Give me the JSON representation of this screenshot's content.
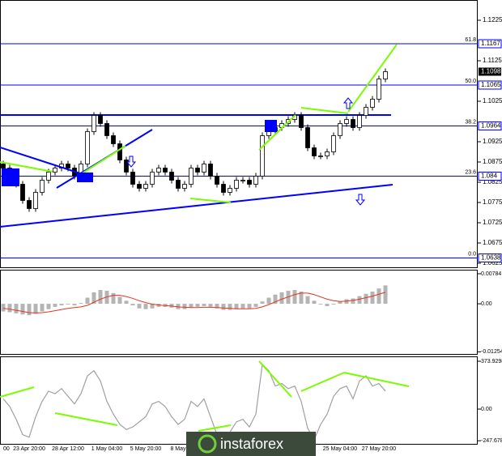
{
  "chart_data": {
    "type": "candlestick",
    "categories": [
      "00",
      null,
      null,
      null,
      "23 Apr 20:00",
      null,
      null,
      null,
      null,
      null,
      "28 Apr 12:00",
      null,
      null,
      null,
      null,
      null,
      "1 May 04:00",
      null,
      null,
      null,
      null,
      null,
      "5 May 20:00",
      null,
      null,
      null,
      null,
      "8 May",
      null,
      null,
      null,
      null,
      null,
      null,
      null,
      null,
      null,
      null,
      null,
      null,
      null,
      null,
      null,
      null,
      null,
      null,
      null,
      null,
      null,
      null,
      null,
      null,
      "25 May 04:00",
      null,
      null,
      null,
      null,
      null,
      "27 May 20:00",
      null
    ],
    "open": [
      1.087,
      1.086,
      1.084,
      1.082,
      1.078,
      1.076,
      1.08,
      1.083,
      1.085,
      1.086,
      1.087,
      1.086,
      1.084,
      1.087,
      1.095,
      1.099,
      1.097,
      1.094,
      1.092,
      1.088,
      1.085,
      1.082,
      1.081,
      1.082,
      1.085,
      1.086,
      1.085,
      1.083,
      1.081,
      1.082,
      1.086,
      1.085,
      1.087,
      1.084,
      1.082,
      1.08,
      1.081,
      1.083,
      1.083,
      1.082,
      1.084,
      1.094,
      1.095,
      1.096,
      1.097,
      1.098,
      1.099,
      1.096,
      1.091,
      1.089,
      1.089,
      1.09,
      1.094,
      1.097,
      1.098,
      1.096,
      1.099,
      1.101,
      1.103,
      1.108
    ],
    "high": [
      1.0878,
      1.0868,
      1.0848,
      1.0828,
      1.0788,
      1.0808,
      1.0838,
      1.0858,
      1.0868,
      1.0878,
      1.0878,
      1.0868,
      1.0878,
      1.0958,
      1.0998,
      1.0998,
      1.0978,
      1.0948,
      1.0928,
      1.0888,
      1.0858,
      1.0828,
      1.0828,
      1.0858,
      1.0868,
      1.0868,
      1.0858,
      1.0838,
      1.0828,
      1.0868,
      1.0868,
      1.0878,
      1.0878,
      1.0848,
      1.0828,
      1.0818,
      1.0838,
      1.0838,
      1.0838,
      1.0848,
      1.0948,
      1.0958,
      1.0968,
      1.0978,
      1.0988,
      1.0998,
      1.0998,
      1.0968,
      1.0918,
      1.0898,
      1.0908,
      1.0948,
      1.0978,
      1.0988,
      1.0988,
      1.0998,
      1.1018,
      1.1038,
      1.1088,
      1.1106
    ],
    "low": [
      1.0852,
      1.0832,
      1.0812,
      1.0772,
      1.0752,
      1.0752,
      1.0792,
      1.0822,
      1.0842,
      1.0852,
      1.0852,
      1.0832,
      1.0832,
      1.0862,
      1.0942,
      1.0962,
      1.0932,
      1.0912,
      1.0872,
      1.0842,
      1.0812,
      1.0802,
      1.0802,
      1.0812,
      1.0842,
      1.0842,
      1.0822,
      1.0802,
      1.0802,
      1.0812,
      1.0842,
      1.0842,
      1.0832,
      1.0812,
      1.0792,
      1.0792,
      1.0802,
      1.0822,
      1.0812,
      1.0812,
      1.0832,
      1.0932,
      1.0942,
      1.0952,
      1.0962,
      1.0972,
      1.0952,
      1.0902,
      1.0882,
      1.0882,
      1.0882,
      1.0892,
      1.0932,
      1.0962,
      1.0952,
      1.0952,
      1.0982,
      1.1002,
      1.1022,
      1.1072
    ],
    "close": [
      1.086,
      1.084,
      1.082,
      1.078,
      1.076,
      1.08,
      1.083,
      1.085,
      1.086,
      1.087,
      1.086,
      1.084,
      1.087,
      1.095,
      1.099,
      1.097,
      1.094,
      1.092,
      1.088,
      1.085,
      1.082,
      1.081,
      1.082,
      1.085,
      1.086,
      1.085,
      1.083,
      1.081,
      1.082,
      1.086,
      1.085,
      1.087,
      1.084,
      1.082,
      1.08,
      1.081,
      1.083,
      1.083,
      1.082,
      1.084,
      1.094,
      1.095,
      1.096,
      1.097,
      1.098,
      1.099,
      1.096,
      1.091,
      1.089,
      1.089,
      1.09,
      1.094,
      1.097,
      1.098,
      1.096,
      1.099,
      1.101,
      1.103,
      1.108,
      1.1098
    ],
    "ylim": [
      1.0615,
      1.1275
    ],
    "yticks": [
      1.1225,
      1.1125,
      1.1025,
      1.0925,
      1.0875,
      1.0825,
      1.0775,
      1.0725,
      1.0675,
      1.0625
    ],
    "current_price": 1.1098,
    "fib_levels": [
      {
        "level": "61.8",
        "value": 1.1167
      },
      {
        "level": "50.0",
        "value": 1.1065
      },
      {
        "level": "38.2",
        "value": 1.0964
      },
      {
        "level": "23.6",
        "value": 1.084
      },
      {
        "level": "0.0",
        "value": 1.0638
      }
    ],
    "horizontal_line": 1.0991,
    "color": "#0000ff",
    "watermark": "instaforex",
    "macd": {
      "ylim": [
        -0.0131,
        0.0089
      ],
      "yticks": [
        0.00784,
        {
          "value": 0,
          "label": "0.00"
        },
        -0.01254
      ],
      "histogram": [
        -0.002,
        -0.0022,
        -0.0025,
        -0.0028,
        -0.003,
        -0.0026,
        -0.002,
        -0.0014,
        -0.0008,
        -0.0004,
        -0.0002,
        -0.0004,
        0.0002,
        0.0016,
        0.003,
        0.0036,
        0.0034,
        0.0028,
        0.0018,
        0.0008,
        -0.0004,
        -0.0012,
        -0.0014,
        -0.0012,
        -0.0008,
        -0.0008,
        -0.001,
        -0.0014,
        -0.0014,
        -0.001,
        -0.0008,
        -0.0006,
        -0.0008,
        -0.0012,
        -0.0016,
        -0.0016,
        -0.0014,
        -0.0012,
        -0.0012,
        -0.0008,
        0.0006,
        0.0016,
        0.0024,
        0.003,
        0.0034,
        0.0036,
        0.0032,
        0.002,
        0.0008,
        -0.0002,
        -0.0006,
        -0.0002,
        0.0006,
        0.0012,
        0.0014,
        0.002,
        0.0026,
        0.0032,
        0.004,
        0.0048
      ],
      "signal": [
        -0.0012,
        -0.0014,
        -0.0017,
        -0.002,
        -0.0023,
        -0.0024,
        -0.0023,
        -0.0021,
        -0.0018,
        -0.0015,
        -0.0012,
        -0.001,
        -0.0008,
        -0.0004,
        0.0004,
        0.0012,
        0.0018,
        0.0022,
        0.0022,
        0.0019,
        0.0014,
        0.0008,
        0.0003,
        -0.0001,
        -0.0003,
        -0.0005,
        -0.0006,
        -0.0008,
        -0.0009,
        -0.001,
        -0.001,
        -0.0009,
        -0.0009,
        -0.001,
        -0.0011,
        -0.0012,
        -0.0013,
        -0.0013,
        -0.0013,
        -0.0012,
        -0.0008,
        -0.0002,
        0.0005,
        0.0012,
        0.0018,
        0.0024,
        0.0028,
        0.0028,
        0.0024,
        0.0018,
        0.0012,
        0.0008,
        0.0006,
        0.0007,
        0.0009,
        0.0012,
        0.0016,
        0.002,
        0.0025,
        0.003
      ],
      "histogram_color": "#b4b4b4",
      "signal_color": "#e8321e"
    },
    "cci": {
      "ylim": [
        -272,
        412
      ],
      "yticks": [
        373.9298,
        {
          "value": 0,
          "label": "0.00"
        },
        -247.678
      ],
      "values": [
        80,
        20,
        -80,
        -200,
        -220,
        -60,
        60,
        140,
        120,
        160,
        100,
        40,
        120,
        260,
        300,
        220,
        60,
        -40,
        -120,
        -160,
        -140,
        -100,
        -60,
        40,
        60,
        20,
        -60,
        -120,
        -80,
        60,
        20,
        80,
        -60,
        -200,
        -240,
        -180,
        -100,
        -80,
        -140,
        -40,
        350,
        300,
        180,
        200,
        160,
        180,
        60,
        -150,
        -240,
        -120,
        -40,
        100,
        160,
        180,
        80,
        220,
        260,
        180,
        200,
        140
      ],
      "color": "#a0a0a0"
    }
  }
}
